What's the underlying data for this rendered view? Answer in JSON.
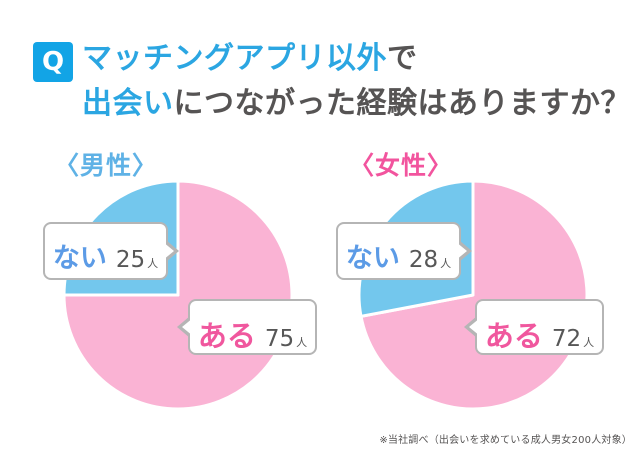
{
  "header": {
    "q_badge": "Q",
    "line1": {
      "highlight": "マッチングアプリ以外",
      "rest": "で"
    },
    "line2": {
      "highlight": "出会い",
      "rest": "につながった経験はありますか？"
    }
  },
  "charts": [
    {
      "group_label": "〈男性〉",
      "callout_no": {
        "label": "ない",
        "value": "25",
        "unit": "人"
      },
      "callout_yes": {
        "label": "ある",
        "value": "75",
        "unit": "人"
      }
    },
    {
      "group_label": "〈女性〉",
      "callout_no": {
        "label": "ない",
        "value": "28",
        "unit": "人"
      },
      "callout_yes": {
        "label": "ある",
        "value": "72",
        "unit": "人"
      }
    }
  ],
  "footnote": "※当社調べ（出会いを求めている成人男女200人対象）",
  "colors": {
    "accent_blue": "#2BA6E2",
    "q_badge_bg": "#12A4E6",
    "text_dark": "#565454",
    "pie_blue": "#73C7ED",
    "pie_pink": "#FAB3D4",
    "label_blue": "#5C9BE6",
    "label_pink": "#F0579E",
    "male_title": "#5FB2E6",
    "female_title": "#F2549E",
    "callout_border": "#B5B5B5",
    "number_gray": "#575757"
  },
  "chart_data": [
    {
      "type": "pie",
      "title": "〈男性〉",
      "categories": [
        "ある",
        "ない"
      ],
      "slice_keys": [
        "aru-yes",
        "nai-no"
      ],
      "values": [
        75,
        25
      ],
      "unit": "人",
      "total": 100,
      "colors": [
        "#FAB3D4",
        "#73C7ED"
      ],
      "start_angle_deg": 0,
      "direction": "clockwise",
      "legend": "callout-labels",
      "separator_stroke": "#ffffff"
    },
    {
      "type": "pie",
      "title": "〈女性〉",
      "categories": [
        "ある",
        "ない"
      ],
      "slice_keys": [
        "aru-yes",
        "nai-no"
      ],
      "values": [
        72,
        28
      ],
      "unit": "人",
      "total": 100,
      "colors": [
        "#FAB3D4",
        "#73C7ED"
      ],
      "start_angle_deg": 0,
      "direction": "clockwise",
      "legend": "callout-labels",
      "separator_stroke": "#ffffff"
    }
  ]
}
